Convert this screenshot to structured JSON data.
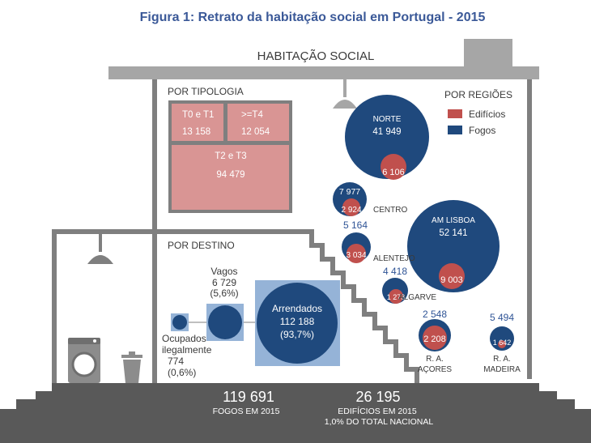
{
  "figure_title": "Figura 1: Retrato da habitação social em Portugal - 2015",
  "roof_label": "HABITAÇÃO SOCIAL",
  "colors": {
    "roof": "#a6a6a6",
    "wall": "#7f7f7f",
    "blue": "#1f497d",
    "red": "#c0504d",
    "pink": "#d99594",
    "title": "#3b5998",
    "floor": "#595959"
  },
  "chart_data": [
    {
      "type": "treemap",
      "title": "POR TIPOLOGIA",
      "items": [
        {
          "label": "T0 e T1",
          "value": 13158,
          "display": "13 158"
        },
        {
          "label": ">=T4",
          "value": 12054,
          "display": "12 054"
        },
        {
          "label": "T2 e T3",
          "value": 94479,
          "display": "94 479"
        }
      ]
    },
    {
      "type": "bubble",
      "title": "POR REGIÕES",
      "legend": [
        {
          "label": "Edifícios",
          "color": "#c0504d"
        },
        {
          "label": "Fogos",
          "color": "#1f497d"
        }
      ],
      "regions": [
        {
          "name": "NORTE",
          "fogos": 41949,
          "fogos_display": "41 949",
          "edificios": 6106,
          "edificios_display": "6 106"
        },
        {
          "name": "CENTRO",
          "fogos": 7977,
          "fogos_display": "7 977",
          "edificios": 2924,
          "edificios_display": "2 924"
        },
        {
          "name": "AM LISBOA",
          "fogos": 52141,
          "fogos_display": "52 141",
          "edificios": 9003,
          "edificios_display": "9 003"
        },
        {
          "name": "ALENTEJO",
          "fogos": 5164,
          "fogos_display": "5 164",
          "edificios": 3034,
          "edificios_display": "3 034"
        },
        {
          "name": "ALGARVE",
          "fogos": 4418,
          "fogos_display": "4 418",
          "edificios": 1278,
          "edificios_display": "1 278"
        },
        {
          "name": "R. A.\nAÇORES",
          "name_lines": [
            "R. A.",
            "AÇORES"
          ],
          "fogos": 2548,
          "fogos_display": "2 548",
          "edificios": 2208,
          "edificios_display": "2 208"
        },
        {
          "name": "R. A.\nMADEIRA",
          "name_lines": [
            "R. A.",
            "MADEIRA"
          ],
          "fogos": 5494,
          "fogos_display": "5 494",
          "edificios": 1642,
          "edificios_display": "1 642"
        }
      ]
    },
    {
      "type": "bubble",
      "title": "POR DESTINO",
      "items": [
        {
          "label_lines": [
            "Ocupados",
            "ilegalmente"
          ],
          "value": 774,
          "display": "774",
          "percent": "(0,6%)"
        },
        {
          "label_lines": [
            "Vagos"
          ],
          "value": 6729,
          "display": "6 729",
          "percent": "(5,6%)"
        },
        {
          "label_lines": [
            "Arrendados"
          ],
          "value": 112188,
          "display": "112 188",
          "percent": "(93,7%)"
        }
      ]
    }
  ],
  "totals": [
    {
      "value": "119 691",
      "label_lines": [
        "FOGOS EM 2015"
      ]
    },
    {
      "value": "26 195",
      "label_lines": [
        "EDIFÍCIOS EM 2015",
        "1,0% DO TOTAL NACIONAL"
      ]
    }
  ]
}
